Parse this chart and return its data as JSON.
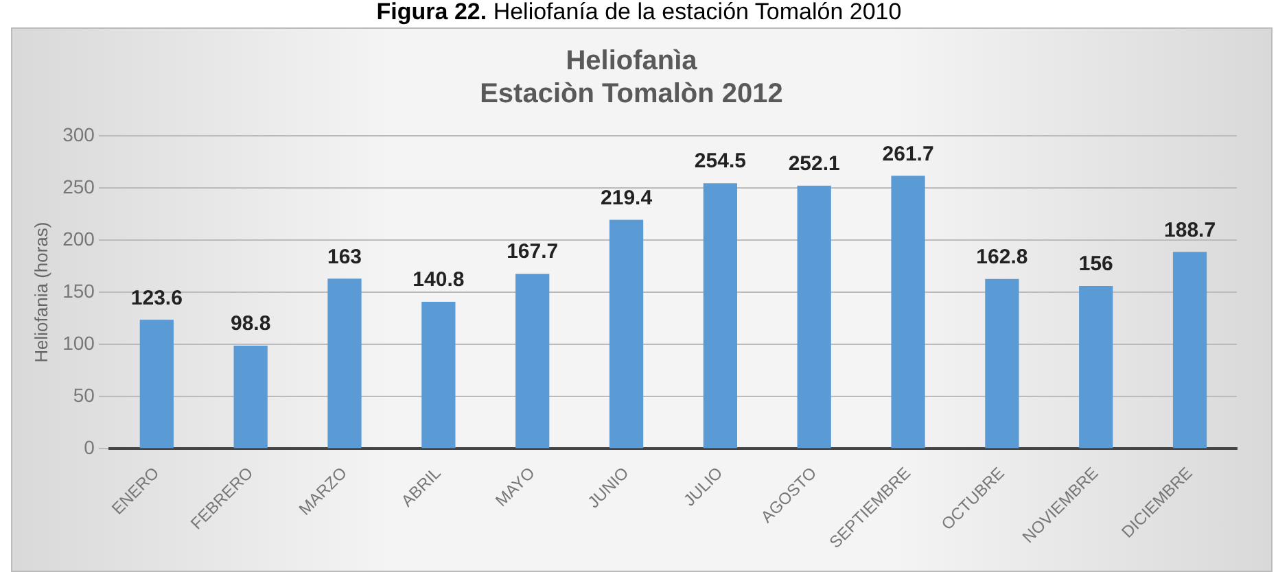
{
  "chart_data": {
    "type": "bar",
    "title": "Heliofanìa\nEstaciòn Tomalòn 2012",
    "ylabel": "Heliofania (horas)",
    "annotations": [
      "Figura 22. Heliofanía de la estación Tomalón 2010"
    ],
    "categories": [
      "ENERO",
      "FEBRERO",
      "MARZO",
      "ABRIL",
      "MAYO",
      "JUNIO",
      "JULIO",
      "AGOSTO",
      "SEPTIEMBRE",
      "OCTUBRE",
      "NOVIEMBRE",
      "DICIEMBRE"
    ],
    "values": [
      123.6,
      98.8,
      163,
      140.8,
      167.7,
      219.4,
      254.5,
      252.1,
      261.7,
      162.8,
      156,
      188.7
    ],
    "color": "#5b9bd5",
    "ylim": [
      0,
      300
    ],
    "yticks": [
      0,
      50,
      100,
      150,
      200,
      250,
      300
    ],
    "grid": "y",
    "data_labels": true,
    "legend": false
  }
}
